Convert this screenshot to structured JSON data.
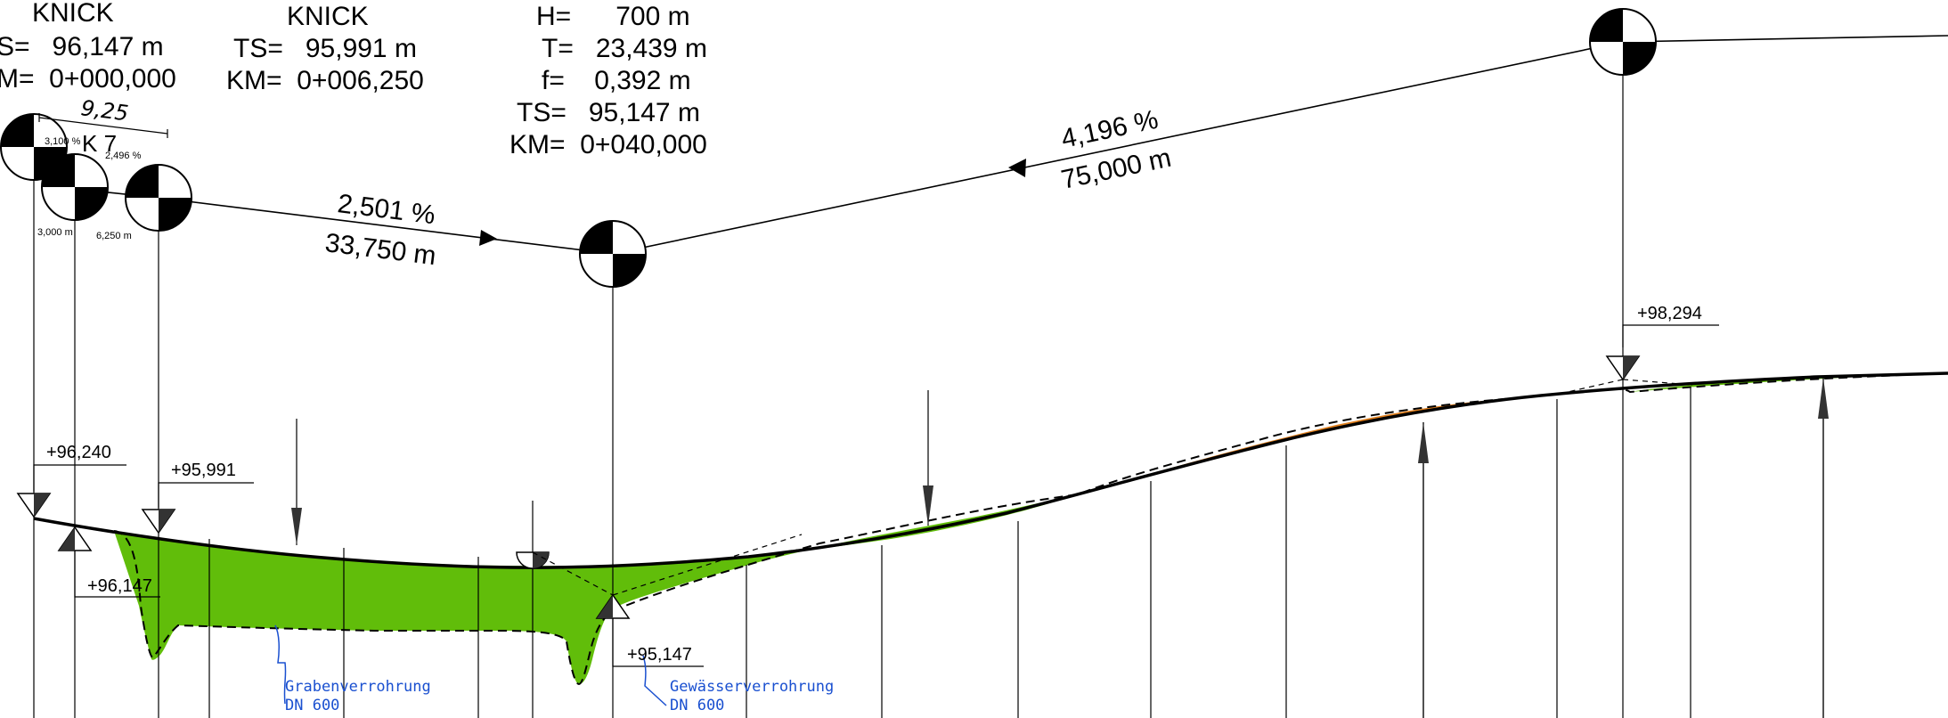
{
  "colors": {
    "fill_green": "#61bd0a",
    "fill_orange": "#e07f1d",
    "line": "#000000",
    "pipe_blue": "#1a50d0"
  },
  "knick_1": {
    "title": "KNICK",
    "ts": "S=   96,147 m",
    "km": "M=  0+000,000"
  },
  "knick_2": {
    "title": "KNICK",
    "ts": "TS=   95,991 m",
    "km": "KM=  0+006,250"
  },
  "curve": {
    "h": "H=      700 m",
    "t": "T=   23,439 m",
    "f": "f=    0,392 m",
    "ts": "TS=   95,147 m",
    "km": "KM=  0+040,000"
  },
  "k7": {
    "dim": "9,25",
    "label": "K 7",
    "slope_a": "3,100 %",
    "slope_b": "2,496 %",
    "len_a": "3,000 m",
    "len_b": "6,250 m"
  },
  "grade_1": {
    "slope": "2,501 %",
    "length": "33,750 m"
  },
  "grade_2": {
    "slope": "4,196 %",
    "length": "75,000 m"
  },
  "elevations": {
    "e1": "+96,240",
    "e2": "+95,991",
    "e3": "+96,147",
    "e4": "+95,147",
    "e5": "+98,294"
  },
  "pipes": {
    "graben": {
      "name": "Grabenverrohrung",
      "dn": "DN 600"
    },
    "gewaesser": {
      "name": "Gewässerverrohrung",
      "dn": "DN 600"
    }
  }
}
